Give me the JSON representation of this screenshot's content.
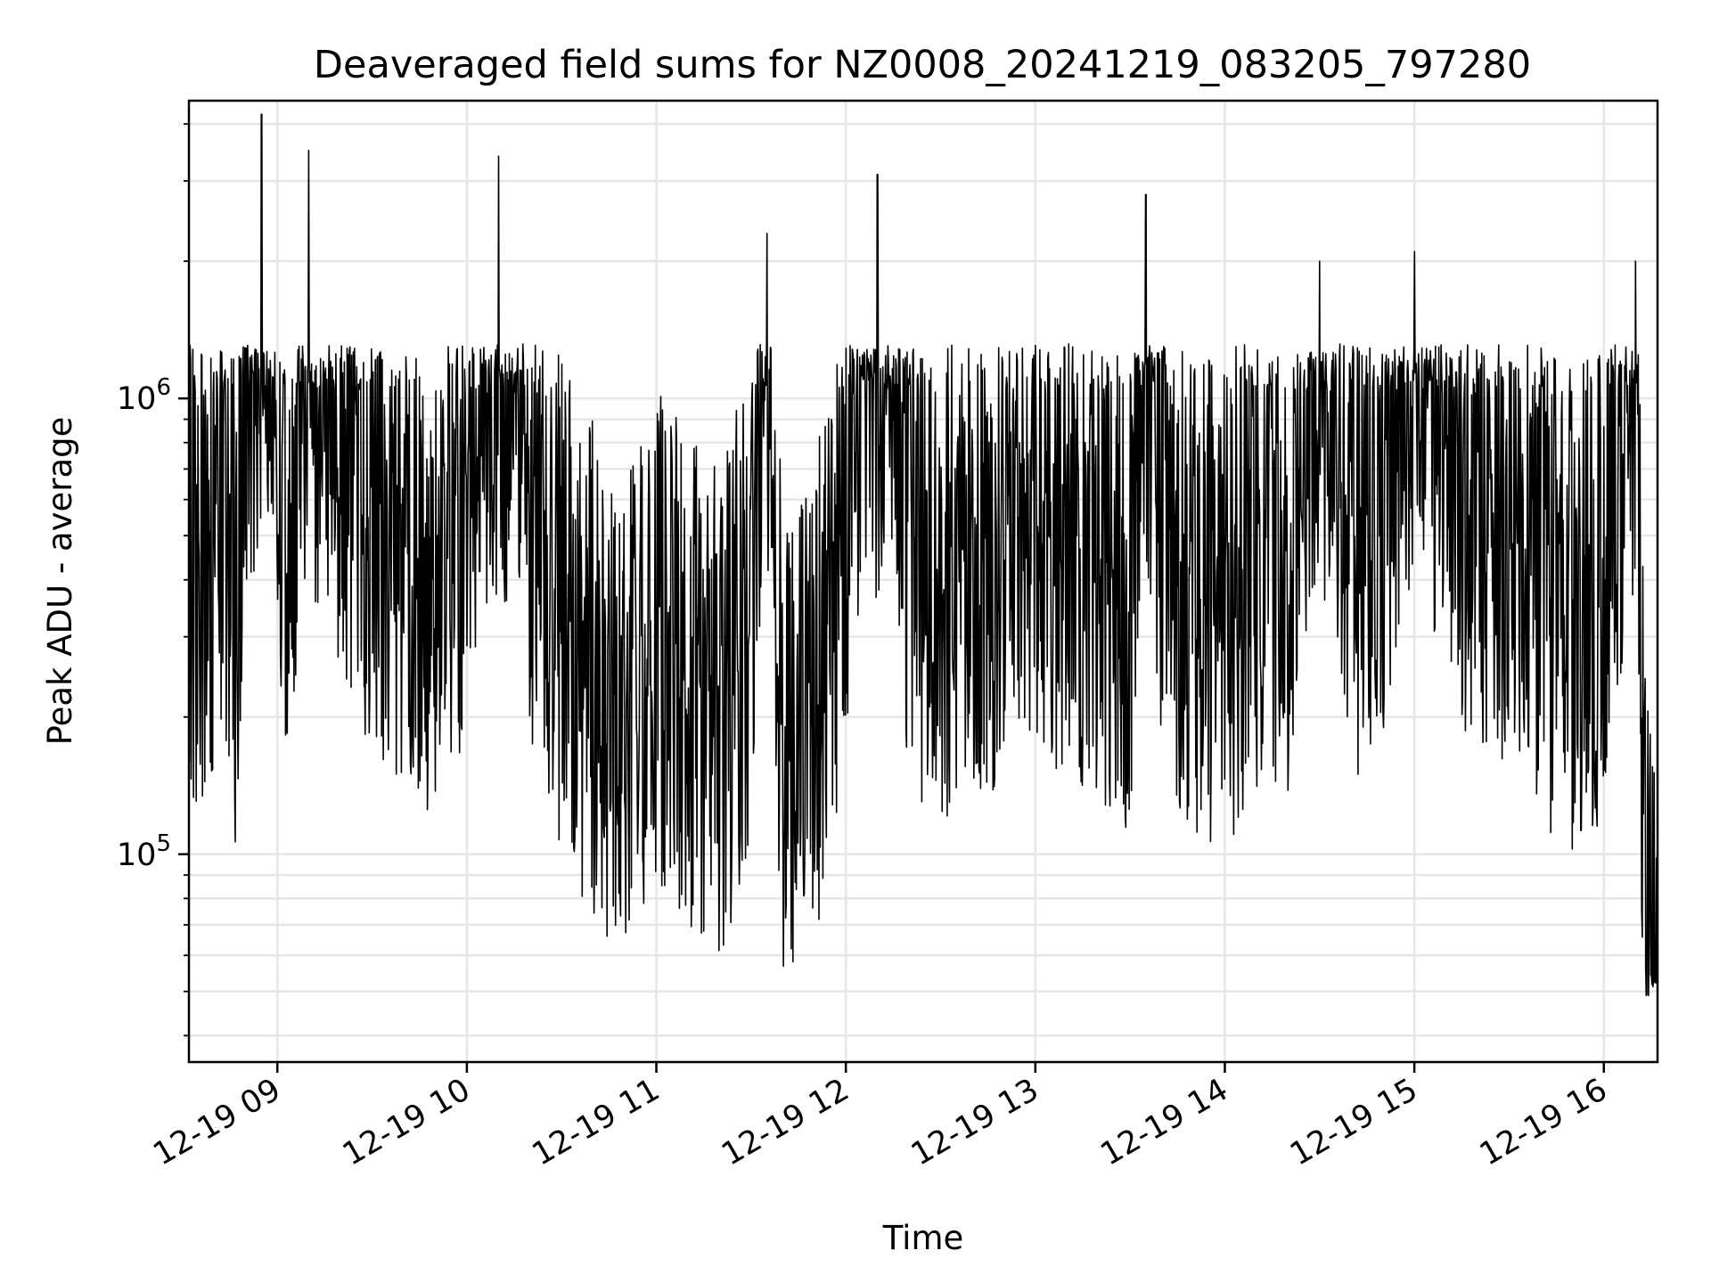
{
  "chart_data": {
    "type": "line",
    "title": "Deaveraged field sums for NZ0008_20241219_083205_797280",
    "xlabel": "Time",
    "ylabel": "Peak ADU - average",
    "y_scale": "log",
    "ylim": [
      35000,
      4500000
    ],
    "xlim": [
      "2024-12-19 08:32",
      "2024-12-19 16:17"
    ],
    "grid": true,
    "line_color": "#000000",
    "grid_color": "#e6e6e6",
    "x_ticks": [
      "12-19 09",
      "12-19 10",
      "12-19 11",
      "12-19 12",
      "12-19 13",
      "12-19 14",
      "12-19 15",
      "12-19 16"
    ],
    "y_ticks": [
      {
        "value": 100000,
        "base": "10",
        "exp": "5"
      },
      {
        "value": 1000000,
        "base": "10",
        "exp": "6"
      }
    ],
    "series": [
      {
        "x": [
          "2024-12-19 08:32",
          "2024-12-19 08:35",
          "2024-12-19 08:40",
          "2024-12-19 08:43",
          "2024-12-19 08:45",
          "2024-12-19 08:47",
          "2024-12-19 08:50",
          "2024-12-19 08:55",
          "2024-12-19 09:00",
          "2024-12-19 09:05",
          "2024-12-19 09:10",
          "2024-12-19 09:20",
          "2024-12-19 09:30",
          "2024-12-19 09:40",
          "2024-12-19 09:50",
          "2024-12-19 10:00",
          "2024-12-19 10:10",
          "2024-12-19 10:20",
          "2024-12-19 10:30",
          "2024-12-19 10:40",
          "2024-12-19 10:50",
          "2024-12-19 11:00",
          "2024-12-19 11:10",
          "2024-12-19 11:20",
          "2024-12-19 11:30",
          "2024-12-19 11:35",
          "2024-12-19 11:40",
          "2024-12-19 11:50",
          "2024-12-19 12:00",
          "2024-12-19 12:10",
          "2024-12-19 12:20",
          "2024-12-19 12:30",
          "2024-12-19 12:40",
          "2024-12-19 12:50",
          "2024-12-19 13:00",
          "2024-12-19 13:10",
          "2024-12-19 13:20",
          "2024-12-19 13:30",
          "2024-12-19 13:35",
          "2024-12-19 13:40",
          "2024-12-19 13:50",
          "2024-12-19 14:00",
          "2024-12-19 14:10",
          "2024-12-19 14:20",
          "2024-12-19 14:30",
          "2024-12-19 14:40",
          "2024-12-19 14:50",
          "2024-12-19 15:00",
          "2024-12-19 15:10",
          "2024-12-19 15:20",
          "2024-12-19 15:30",
          "2024-12-19 15:40",
          "2024-12-19 15:50",
          "2024-12-19 16:00",
          "2024-12-19 16:05",
          "2024-12-19 16:10",
          "2024-12-19 16:12",
          "2024-12-19 16:15",
          "2024-12-19 16:17"
        ],
        "y": [
          500000,
          420000,
          550000,
          480000,
          600000,
          300000,
          1200000,
          4200000,
          600000,
          500000,
          3500000,
          700000,
          600000,
          500000,
          400000,
          600000,
          3400000,
          500000,
          350000,
          250000,
          200000,
          300000,
          250000,
          200000,
          350000,
          2300000,
          150000,
          200000,
          600000,
          3100000,
          500000,
          400000,
          450000,
          500000,
          600000,
          500000,
          450000,
          400000,
          2800000,
          500000,
          400000,
          350000,
          500000,
          450000,
          2000000,
          500000,
          600000,
          2100000,
          700000,
          600000,
          550000,
          400000,
          350000,
          400000,
          650000,
          2000000,
          150000,
          50000,
          40000
        ]
      }
    ]
  }
}
